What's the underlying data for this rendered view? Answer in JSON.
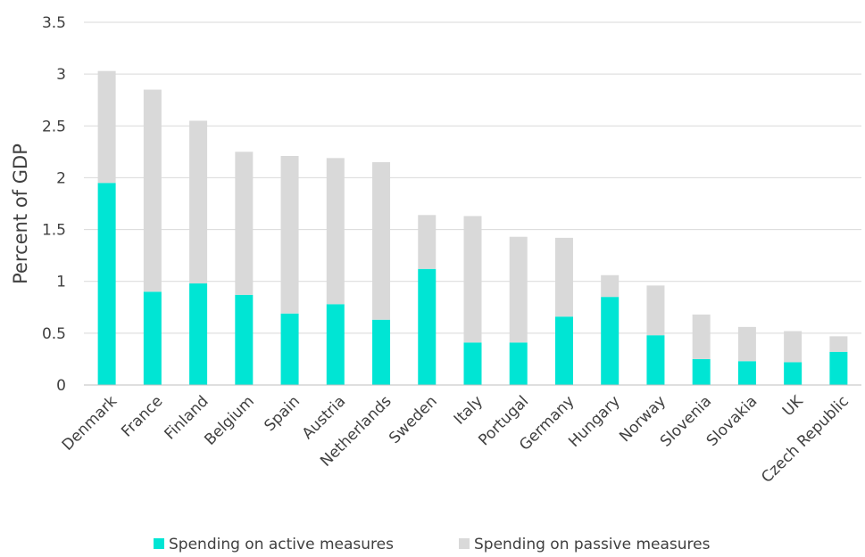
{
  "chart_data": {
    "type": "bar",
    "stacked": true,
    "categories": [
      "Denmark",
      "France",
      "Finland",
      "Belgium",
      "Spain",
      "Austria",
      "Netherlands",
      "Sweden",
      "Italy",
      "Portugal",
      "Germany",
      "Hungary",
      "Norway",
      "Slovenia",
      "Slovakia",
      "UK",
      "Czech Republic"
    ],
    "series": [
      {
        "name": "Spending on active measures",
        "color": "#00e5d4",
        "values": [
          1.95,
          0.9,
          0.98,
          0.87,
          0.69,
          0.78,
          0.63,
          1.12,
          0.41,
          0.41,
          0.66,
          0.85,
          0.48,
          0.25,
          0.23,
          0.22,
          0.32
        ]
      },
      {
        "name": "Spending on passive measures",
        "color": "#d9d9d9",
        "values": [
          1.08,
          1.95,
          1.57,
          1.38,
          1.52,
          1.41,
          1.52,
          0.52,
          1.22,
          1.02,
          0.76,
          0.21,
          0.48,
          0.43,
          0.33,
          0.3,
          0.15
        ]
      }
    ],
    "ylabel": "Percent of GDP",
    "xlabel": "",
    "ylim": [
      0,
      3.5
    ],
    "yticks": [
      "0",
      "0.5",
      "1",
      "1.5",
      "2",
      "2.5",
      "3",
      "3.5"
    ],
    "grid": true,
    "legend_position": "bottom"
  }
}
